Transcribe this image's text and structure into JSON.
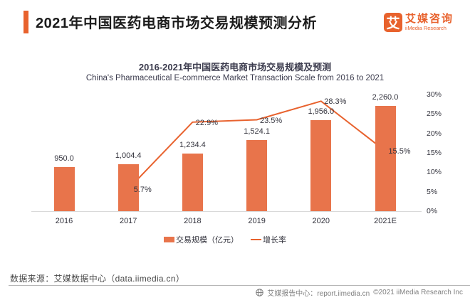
{
  "header": {
    "title": "2021年中国医药电商市场交易规模预测分析",
    "logo": {
      "mark": "艾",
      "name_cn": "艾媒咨询",
      "name_en": "iiMedia Research"
    }
  },
  "chart_data": {
    "type": "bar",
    "title": "2016-2021年中国医药电商市场交易规模及预测",
    "subtitle": "China's Pharmaceutical E-commerce Market Transaction Scale from 2016 to 2021",
    "categories": [
      "2016",
      "2017",
      "2018",
      "2019",
      "2020",
      "2021E"
    ],
    "series": [
      {
        "name": "交易规模（亿元）",
        "type": "bar",
        "values": [
          950.0,
          1004.4,
          1234.4,
          1524.1,
          1956.0,
          2260.0
        ],
        "labels": [
          "950.0",
          "1,004.4",
          "1,234.4",
          "1,524.1",
          "1,956.0",
          "2,260.0"
        ],
        "color": "#e8744b"
      },
      {
        "name": "增长率",
        "type": "line",
        "axis": "right",
        "values": [
          null,
          5.7,
          22.9,
          23.5,
          28.3,
          15.5
        ],
        "labels": [
          null,
          "5.7%",
          "22.9%",
          "23.5%",
          "28.3%",
          "15.5%"
        ],
        "color": "#e8622e"
      }
    ],
    "right_axis": {
      "min": 0,
      "max": 30,
      "step": 5,
      "tick_labels": [
        "0%",
        "5%",
        "10%",
        "15%",
        "20%",
        "25%",
        "30%"
      ]
    },
    "legend_position": "bottom",
    "grid": false
  },
  "source_note": "数据来源：艾媒数据中心（data.iimedia.cn）",
  "footer": {
    "report_center": "艾媒报告中心：report.iimedia.cn",
    "copyright": "©2021  iiMedia Research  Inc"
  },
  "colors": {
    "accent": "#e8622d",
    "bar": "#e8744b",
    "line": "#e8622e"
  }
}
